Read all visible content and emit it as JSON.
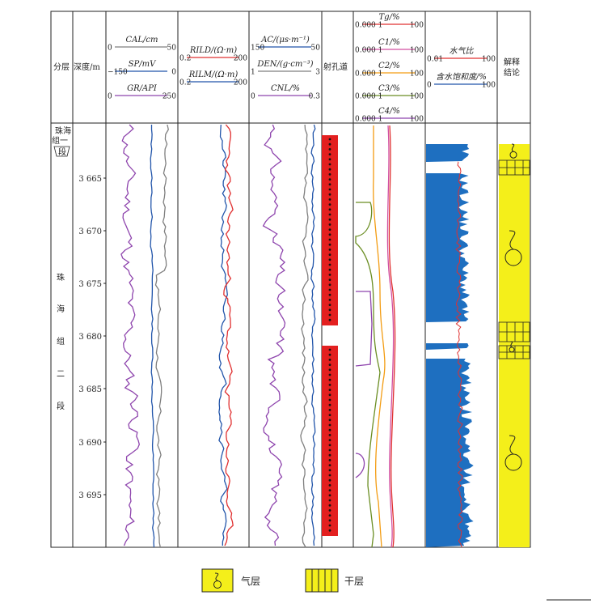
{
  "header": {
    "layer": "分层",
    "depth": "深度/m",
    "perforation": "射孔道",
    "interpretation": "解释\n结论",
    "track1": [
      {
        "label": "CAL/cm",
        "min": "0",
        "max": "50",
        "color": "#7f7f7f"
      },
      {
        "label": "SP/mV",
        "min": "−150",
        "max": "0",
        "color": "#2255aa"
      },
      {
        "label": "GR/API",
        "min": "0",
        "max": "250",
        "color": "#8e44ad"
      }
    ],
    "track2": [
      {
        "label": "RILD/(Ω·m)",
        "min": "0.2",
        "max": "200",
        "color": "#e03030"
      },
      {
        "label": "RILM/(Ω·m)",
        "min": "0.2",
        "max": "200",
        "color": "#2255aa"
      }
    ],
    "track3": [
      {
        "label": "AC/(μs·m⁻¹)",
        "min": "150",
        "max": "50",
        "color": "#2255aa"
      },
      {
        "label": "DEN/(g·cm⁻³)",
        "min": "1",
        "max": "3",
        "color": "#7f7f7f"
      },
      {
        "label": "CNL/%",
        "min": "0",
        "max": "0.3",
        "color": "#8e44ad"
      }
    ],
    "track4": [
      {
        "label": "Tg/%",
        "min": "0.000 1",
        "max": "100",
        "color": "#e03030"
      },
      {
        "label": "C1/%",
        "min": "0.000 1",
        "max": "100",
        "color": "#d24fa0"
      },
      {
        "label": "C2/%",
        "min": "0.000 1",
        "max": "100",
        "color": "#f39c12"
      },
      {
        "label": "C3/%",
        "min": "0.000 1",
        "max": "100",
        "color": "#6b8e23"
      },
      {
        "label": "C4/%",
        "min": "0.000 1",
        "max": "100",
        "color": "#8e44ad"
      }
    ],
    "track5": [
      {
        "label": "水气比",
        "min": "0.01",
        "max": "100",
        "color": "#e03030"
      },
      {
        "label": "含水饱和度/%",
        "min": "0",
        "max": "100",
        "color": "#2255aa"
      }
    ]
  },
  "layers": [
    {
      "name": "珠海组一段"
    },
    {
      "name": "珠海组二段"
    }
  ],
  "depth_ticks": [
    "3 665",
    "3 670",
    "3 675",
    "3 680",
    "3 685",
    "3 690",
    "3 695"
  ],
  "legend": [
    {
      "label": "气层",
      "icon": "gas-layer-icon"
    },
    {
      "label": "干层",
      "icon": "dry-layer-icon"
    }
  ],
  "colors": {
    "perforation": "#e32020",
    "saturation": "#1e6fc0",
    "interpretation": "#f4ef1a"
  }
}
